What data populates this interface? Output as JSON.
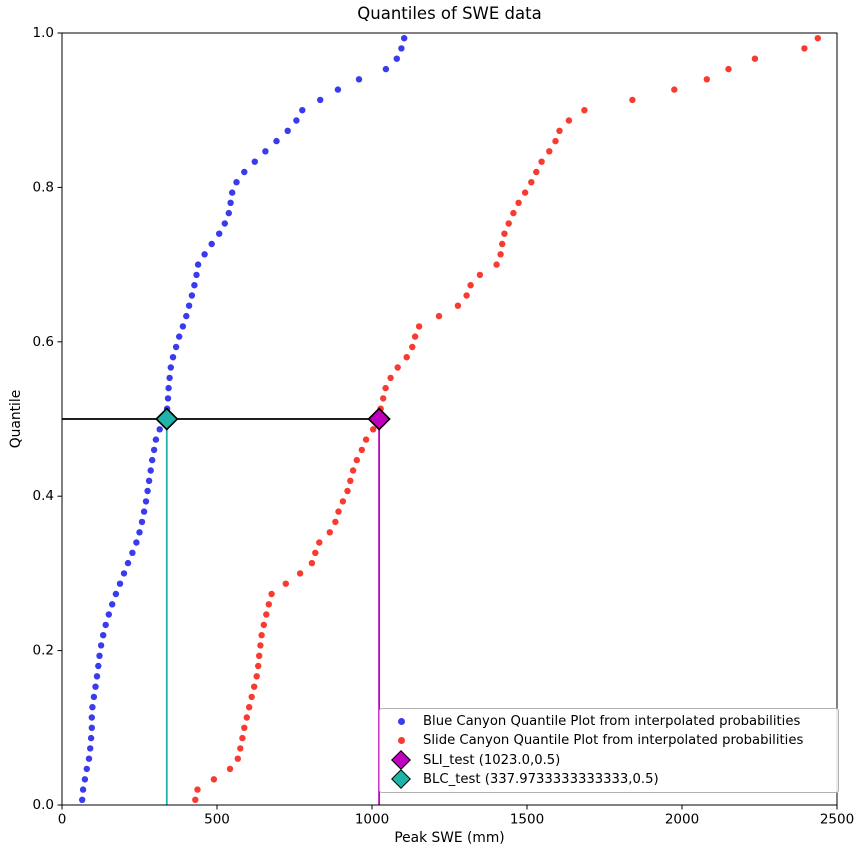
{
  "title": "Quantiles of SWE data",
  "axes": {
    "xlabel": "Peak SWE (mm)",
    "ylabel": "Quantile",
    "xlim": [
      0,
      2500
    ],
    "ylim": [
      0,
      1
    ],
    "x_ticks": [
      0,
      500,
      1000,
      1500,
      2000,
      2500
    ],
    "x_tick_labels": [
      "0",
      "500",
      "1000",
      "1500",
      "2000",
      "2500"
    ],
    "y_ticks": [
      0,
      0.2,
      0.4,
      0.6,
      0.8,
      1.0
    ],
    "y_tick_labels": [
      "0.0",
      "0.2",
      "0.4",
      "0.6",
      "0.8",
      "1.0"
    ],
    "spine_color": "#000000"
  },
  "chart_data": {
    "type": "scatter",
    "title": "Quantiles of SWE data",
    "xlabel": "Peak SWE (mm)",
    "ylabel": "Quantile",
    "xlim": [
      0,
      2500
    ],
    "ylim": [
      0,
      1
    ],
    "grid": false,
    "legend_position": "lower right",
    "series": [
      {
        "id": "blue-canyon",
        "name": "Blue Canyon Quantile Plot from interpolated probabilities",
        "marker": "dot",
        "color": "#3a3aee",
        "points": [
          [
            65,
            0.0067
          ],
          [
            68,
            0.02
          ],
          [
            74,
            0.0333
          ],
          [
            80,
            0.0467
          ],
          [
            87,
            0.06
          ],
          [
            91,
            0.0733
          ],
          [
            94,
            0.0867
          ],
          [
            96,
            0.1
          ],
          [
            96,
            0.1133
          ],
          [
            98,
            0.1267
          ],
          [
            103,
            0.14
          ],
          [
            108,
            0.1533
          ],
          [
            113,
            0.1667
          ],
          [
            117,
            0.18
          ],
          [
            121,
            0.1933
          ],
          [
            126,
            0.2067
          ],
          [
            133,
            0.22
          ],
          [
            141,
            0.2333
          ],
          [
            151,
            0.2467
          ],
          [
            162,
            0.26
          ],
          [
            174,
            0.2733
          ],
          [
            187,
            0.2867
          ],
          [
            200,
            0.3
          ],
          [
            213,
            0.3133
          ],
          [
            227,
            0.3267
          ],
          [
            240,
            0.34
          ],
          [
            250,
            0.3533
          ],
          [
            258,
            0.3667
          ],
          [
            265,
            0.38
          ],
          [
            271,
            0.3933
          ],
          [
            276,
            0.4067
          ],
          [
            281,
            0.42
          ],
          [
            286,
            0.4333
          ],
          [
            291,
            0.4467
          ],
          [
            297,
            0.46
          ],
          [
            303,
            0.4733
          ],
          [
            315,
            0.4867
          ],
          [
            337.9733333333333,
            0.5
          ],
          [
            339,
            0.5133
          ],
          [
            342,
            0.5267
          ],
          [
            344,
            0.54
          ],
          [
            347,
            0.5533
          ],
          [
            351,
            0.5667
          ],
          [
            358,
            0.58
          ],
          [
            368,
            0.5933
          ],
          [
            378,
            0.6067
          ],
          [
            390,
            0.62
          ],
          [
            401,
            0.6333
          ],
          [
            410,
            0.6467
          ],
          [
            419,
            0.66
          ],
          [
            427,
            0.6733
          ],
          [
            434,
            0.6867
          ],
          [
            439,
            0.7
          ],
          [
            460,
            0.7133
          ],
          [
            483,
            0.7267
          ],
          [
            507,
            0.74
          ],
          [
            525,
            0.7533
          ],
          [
            538,
            0.7667
          ],
          [
            544,
            0.78
          ],
          [
            549,
            0.7933
          ],
          [
            563,
            0.8067
          ],
          [
            588,
            0.82
          ],
          [
            622,
            0.8333
          ],
          [
            656,
            0.8467
          ],
          [
            692,
            0.86
          ],
          [
            728,
            0.8733
          ],
          [
            756,
            0.8867
          ],
          [
            775,
            0.9
          ],
          [
            833,
            0.9133
          ],
          [
            890,
            0.9267
          ],
          [
            958,
            0.94
          ],
          [
            1045,
            0.9533
          ],
          [
            1080,
            0.9667
          ],
          [
            1095,
            0.98
          ],
          [
            1104,
            0.9933
          ]
        ]
      },
      {
        "id": "slide-canyon",
        "name": "Slide Canyon Quantile Plot from interpolated probabilities",
        "marker": "dot",
        "color": "#f83b30",
        "points": [
          [
            430,
            0.0067
          ],
          [
            437,
            0.02
          ],
          [
            490,
            0.0333
          ],
          [
            542,
            0.0467
          ],
          [
            567,
            0.06
          ],
          [
            575,
            0.0733
          ],
          [
            582,
            0.0867
          ],
          [
            588,
            0.1
          ],
          [
            596,
            0.1133
          ],
          [
            604,
            0.1267
          ],
          [
            612,
            0.14
          ],
          [
            620,
            0.1533
          ],
          [
            628,
            0.1667
          ],
          [
            633,
            0.18
          ],
          [
            636,
            0.1933
          ],
          [
            640,
            0.2067
          ],
          [
            644,
            0.22
          ],
          [
            651,
            0.2333
          ],
          [
            659,
            0.2467
          ],
          [
            667,
            0.26
          ],
          [
            676,
            0.2733
          ],
          [
            722,
            0.2867
          ],
          [
            768,
            0.3
          ],
          [
            806,
            0.3133
          ],
          [
            817,
            0.3267
          ],
          [
            830,
            0.34
          ],
          [
            864,
            0.3533
          ],
          [
            882,
            0.3667
          ],
          [
            892,
            0.38
          ],
          [
            906,
            0.3933
          ],
          [
            921,
            0.4067
          ],
          [
            930,
            0.42
          ],
          [
            939,
            0.4333
          ],
          [
            951,
            0.4467
          ],
          [
            967,
            0.46
          ],
          [
            981,
            0.4733
          ],
          [
            1004,
            0.4867
          ],
          [
            1023,
            0.5
          ],
          [
            1028,
            0.5133
          ],
          [
            1036,
            0.5267
          ],
          [
            1044,
            0.54
          ],
          [
            1060,
            0.5533
          ],
          [
            1083,
            0.5667
          ],
          [
            1112,
            0.58
          ],
          [
            1130,
            0.5933
          ],
          [
            1139,
            0.6067
          ],
          [
            1152,
            0.62
          ],
          [
            1216,
            0.6333
          ],
          [
            1277,
            0.6467
          ],
          [
            1305,
            0.66
          ],
          [
            1318,
            0.6733
          ],
          [
            1348,
            0.6867
          ],
          [
            1402,
            0.7
          ],
          [
            1415,
            0.7133
          ],
          [
            1420,
            0.7267
          ],
          [
            1427,
            0.74
          ],
          [
            1441,
            0.7533
          ],
          [
            1456,
            0.7667
          ],
          [
            1473,
            0.78
          ],
          [
            1494,
            0.7933
          ],
          [
            1514,
            0.8067
          ],
          [
            1530,
            0.82
          ],
          [
            1547,
            0.8333
          ],
          [
            1572,
            0.8467
          ],
          [
            1592,
            0.86
          ],
          [
            1605,
            0.8733
          ],
          [
            1635,
            0.8867
          ],
          [
            1685,
            0.9
          ],
          [
            1840,
            0.9133
          ],
          [
            1975,
            0.9267
          ],
          [
            2080,
            0.94
          ],
          [
            2150,
            0.9533
          ],
          [
            2235,
            0.9667
          ],
          [
            2395,
            0.98
          ],
          [
            2438,
            0.9933
          ]
        ]
      },
      {
        "id": "sli-test",
        "name": "SLI_test (1023.0,0.5)",
        "marker": "diamond",
        "color": "#bf00bf",
        "points": [
          [
            1023.0,
            0.5
          ]
        ]
      },
      {
        "id": "blc-test",
        "name": "BLC_test (337.9733333333333,0.5)",
        "marker": "diamond",
        "color": "#1fb4aa",
        "points": [
          [
            337.9733333333333,
            0.5
          ]
        ]
      }
    ],
    "reference_lines": [
      {
        "id": "quantile-0.5-hline",
        "type": "hline",
        "y": 0.5,
        "x0": 0,
        "x1": 1023,
        "color": "#000000"
      },
      {
        "id": "sli-test-vline",
        "type": "vline",
        "x": 1023,
        "y0": 0,
        "y1": 0.5,
        "color": "#bf00bf"
      },
      {
        "id": "blc-test-vline",
        "type": "vline",
        "x": 337.9733333333333,
        "y0": 0,
        "y1": 0.5,
        "color": "#1fb4aa"
      }
    ],
    "legend": {
      "border_color": "#b2b2b2",
      "entries": [
        "Blue Canyon Quantile Plot from interpolated probabilities",
        "Slide Canyon Quantile Plot from interpolated probabilities",
        "SLI_test (1023.0,0.5)",
        "BLC_test (337.9733333333333,0.5)"
      ]
    }
  }
}
